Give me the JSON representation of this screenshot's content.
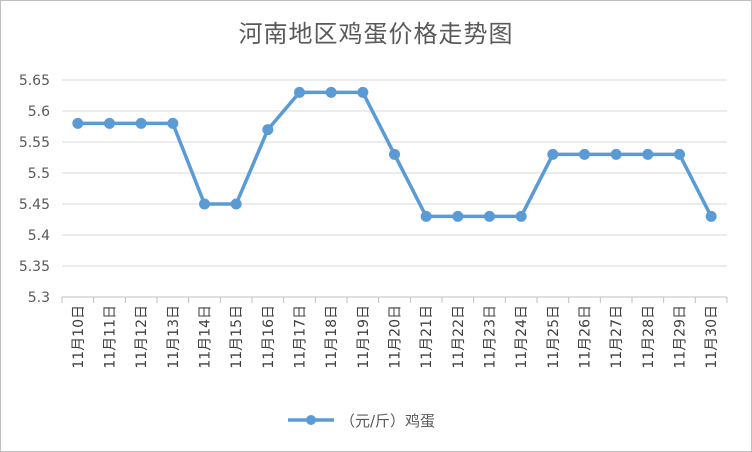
{
  "chart_data": {
    "type": "line",
    "title": "河南地区鸡蛋价格走势图",
    "categories": [
      "11月10日",
      "11月11日",
      "11月12日",
      "11月13日",
      "11月14日",
      "11月15日",
      "11月16日",
      "11月17日",
      "11月18日",
      "11月19日",
      "11月20日",
      "11月21日",
      "11月22日",
      "11月23日",
      "11月24日",
      "11月25日",
      "11月26日",
      "11月27日",
      "11月28日",
      "11月29日",
      "11月30日"
    ],
    "series": [
      {
        "name": "（元/斤）鸡蛋",
        "color": "#5b9bd5",
        "values": [
          5.58,
          5.58,
          5.58,
          5.58,
          5.45,
          5.45,
          5.57,
          5.63,
          5.63,
          5.63,
          5.53,
          5.43,
          5.43,
          5.43,
          5.43,
          5.53,
          5.53,
          5.53,
          5.53,
          5.53,
          5.43
        ]
      }
    ],
    "ylim": [
      5.3,
      5.65
    ],
    "yticks": [
      "5.3",
      "5.35",
      "5.4",
      "5.45",
      "5.5",
      "5.55",
      "5.6",
      "5.65"
    ],
    "grid": true,
    "legend_position": "bottom"
  }
}
